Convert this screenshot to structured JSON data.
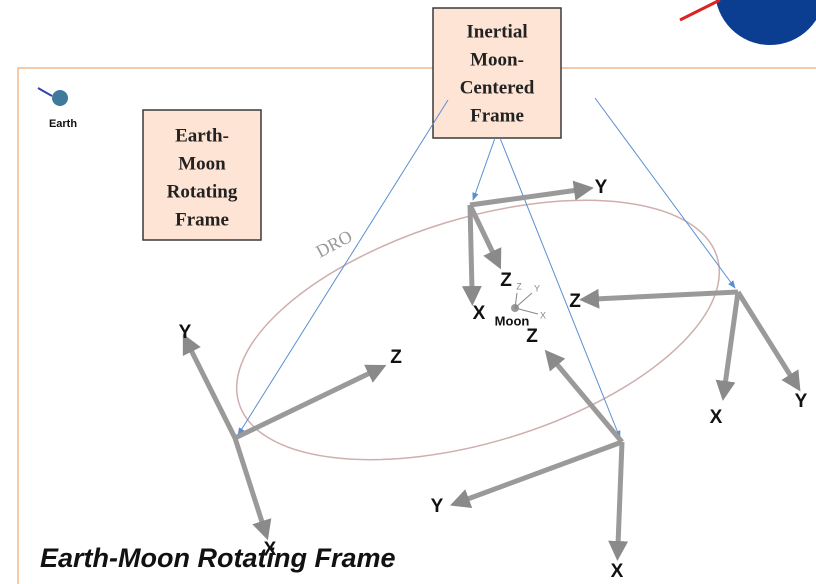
{
  "earth_label": "Earth",
  "boxes": [
    {
      "lines": [
        "Earth-",
        "Moon",
        "Rotating",
        "Frame"
      ]
    },
    {
      "lines": [
        "Inertial",
        "Moon-",
        "Centered",
        "Frame"
      ]
    }
  ],
  "orbit_label": "DRO",
  "moon_label": "Moon",
  "triads": [
    {
      "labels": [
        "Y",
        "Z",
        "X"
      ]
    },
    {
      "labels": [
        "Y",
        "X",
        "Z"
      ]
    },
    {
      "labels": [
        "Z",
        "X",
        "Y"
      ]
    },
    {
      "labels": [
        "Z",
        "Y",
        "X"
      ]
    },
    {
      "labels": [
        "Z",
        "Y",
        "X"
      ]
    }
  ],
  "caption": "Earth-Moon Rotating Frame"
}
